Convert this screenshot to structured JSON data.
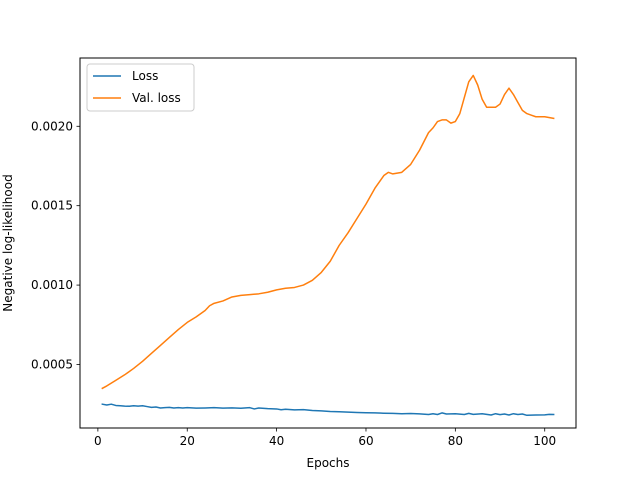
{
  "chart_data": {
    "type": "line",
    "title": "",
    "xlabel": "Epochs",
    "ylabel": "Negative log-likelihood",
    "xlim": [
      -4,
      107
    ],
    "ylim": [
      0.0001,
      0.00243
    ],
    "xticks": [
      0,
      20,
      40,
      60,
      80,
      100
    ],
    "yticks": [
      0.0005,
      0.001,
      0.0015,
      0.002
    ],
    "ytick_labels": [
      "0.0005",
      "0.0010",
      "0.0015",
      "0.0020"
    ],
    "grid": false,
    "legend_position": "top-left",
    "series": [
      {
        "name": "Loss",
        "color": "#1f77b4",
        "x": [
          1,
          2,
          3,
          4,
          5,
          6,
          7,
          8,
          9,
          10,
          11,
          12,
          13,
          14,
          15,
          16,
          17,
          18,
          19,
          20,
          22,
          24,
          26,
          28,
          30,
          32,
          34,
          35,
          36,
          38,
          40,
          41,
          42,
          44,
          46,
          48,
          50,
          52,
          54,
          56,
          58,
          60,
          62,
          64,
          66,
          68,
          70,
          72,
          74,
          75,
          76,
          77,
          78,
          80,
          82,
          83,
          84,
          86,
          88,
          89,
          90,
          91,
          92,
          93,
          94,
          95,
          96,
          98,
          100,
          101,
          102
        ],
        "y": [
          0.00025,
          0.000245,
          0.00025,
          0.000242,
          0.00024,
          0.000238,
          0.000237,
          0.00024,
          0.000238,
          0.00024,
          0.000235,
          0.00023,
          0.000232,
          0.000226,
          0.000228,
          0.00023,
          0.000226,
          0.000228,
          0.000226,
          0.000228,
          0.000225,
          0.000226,
          0.000228,
          0.000225,
          0.000227,
          0.000224,
          0.000228,
          0.00022,
          0.000226,
          0.000222,
          0.00022,
          0.000215,
          0.000218,
          0.000214,
          0.000216,
          0.00021,
          0.000208,
          0.000204,
          0.000202,
          0.0002,
          0.000198,
          0.000196,
          0.000195,
          0.000193,
          0.000192,
          0.00019,
          0.000191,
          0.000189,
          0.000185,
          0.00019,
          0.000185,
          0.000195,
          0.000188,
          0.00019,
          0.000185,
          0.000192,
          0.000186,
          0.00019,
          0.000182,
          0.00019,
          0.000184,
          0.000188,
          0.000182,
          0.00019,
          0.000185,
          0.000188,
          0.00018,
          0.000182,
          0.000183,
          0.000186,
          0.000185
        ]
      },
      {
        "name": "Val. loss",
        "color": "#ff7f0e",
        "x": [
          1,
          2,
          4,
          6,
          8,
          10,
          12,
          14,
          16,
          18,
          20,
          22,
          24,
          25,
          26,
          28,
          30,
          32,
          34,
          36,
          38,
          40,
          42,
          44,
          46,
          48,
          50,
          52,
          54,
          56,
          58,
          60,
          62,
          64,
          65,
          66,
          67,
          68,
          70,
          72,
          74,
          75,
          76,
          77,
          78,
          79,
          80,
          81,
          82,
          83,
          84,
          85,
          86,
          87,
          88,
          89,
          90,
          91,
          92,
          93,
          94,
          95,
          96,
          97,
          98,
          100,
          102
        ],
        "y": [
          0.00035,
          0.000365,
          0.0004,
          0.000435,
          0.000475,
          0.00052,
          0.00057,
          0.00062,
          0.00067,
          0.00072,
          0.000765,
          0.0008,
          0.00084,
          0.00087,
          0.000885,
          0.0009,
          0.000925,
          0.000935,
          0.00094,
          0.000945,
          0.000955,
          0.00097,
          0.00098,
          0.000985,
          0.001,
          0.00103,
          0.00108,
          0.00115,
          0.00125,
          0.00133,
          0.00142,
          0.00151,
          0.00161,
          0.00169,
          0.00171,
          0.0017,
          0.001705,
          0.00171,
          0.00176,
          0.00185,
          0.00196,
          0.00199,
          0.00203,
          0.00204,
          0.00204,
          0.00202,
          0.00203,
          0.00208,
          0.00218,
          0.00228,
          0.00232,
          0.00226,
          0.00217,
          0.00212,
          0.00212,
          0.00212,
          0.00214,
          0.0022,
          0.00224,
          0.0022,
          0.00215,
          0.0021,
          0.00208,
          0.00207,
          0.00206,
          0.00206,
          0.00205
        ]
      }
    ]
  }
}
